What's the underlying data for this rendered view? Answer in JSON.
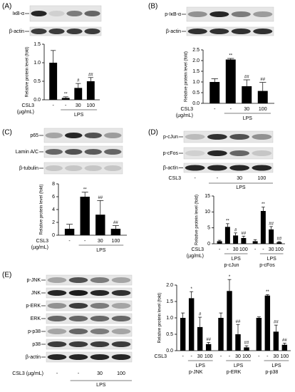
{
  "panels": [
    {
      "letter": "(A)",
      "blot": {
        "rows": [
          "IκB-α",
          "β-actin"
        ]
      }
    },
    {
      "letter": "(B)",
      "blot": {
        "rows": [
          "p-IκB-α",
          "β-actin"
        ]
      }
    },
    {
      "letter": "(C)",
      "blot": {
        "rows": [
          "p65",
          "Lamin A/C",
          "β-tubulin"
        ]
      }
    },
    {
      "letter": "(D)",
      "blot": {
        "rows": [
          "p-cJun",
          "p-cFos",
          "β-actin"
        ],
        "lane_row_label": "CSL3",
        "lanes": [
          "-",
          "-",
          "30",
          "100"
        ],
        "lane_group_label": "LPS"
      }
    },
    {
      "letter": "(E)",
      "blot": {
        "rows": [
          "p-JNK",
          "JNK",
          "p-ERK",
          "ERK",
          "p-p38",
          "p38",
          "β-actin"
        ],
        "lane_row_label": "CSL3 (µg/mL)",
        "lanes": [
          "-",
          "-",
          "30",
          "100"
        ],
        "lane_group_label": "LPS"
      }
    }
  ],
  "chart_data": [
    {
      "type": "bar",
      "y_label": "Relative protein level (fold)",
      "x_row_label": "CSL3",
      "x_row_unit": "(µg/mL)",
      "group_label": "LPS",
      "color": "#000000",
      "categories": [
        "-",
        "-",
        "30",
        "100"
      ],
      "values": [
        1.0,
        0.05,
        0.32,
        0.5
      ],
      "errors": [
        0.33,
        0.03,
        0.12,
        0.1
      ],
      "annotations": [
        null,
        "**",
        "#",
        "##"
      ],
      "ylim": [
        0,
        1.5
      ],
      "yticks": [
        {
          "value": 0,
          "label": "0.0"
        },
        {
          "value": 0.5,
          "label": "0.5"
        },
        {
          "value": 1,
          "label": "1.0"
        },
        {
          "value": 1.5,
          "label": "1.5"
        }
      ]
    },
    {
      "type": "bar",
      "y_label": "Relative protein level (fold)",
      "x_row_label": "CSL3",
      "x_row_unit": "(µg/mL)",
      "group_label": "LPS",
      "color": "#000000",
      "categories": [
        "-",
        "-",
        "30",
        "100"
      ],
      "values": [
        1.0,
        2.05,
        0.8,
        0.58
      ],
      "errors": [
        0.15,
        0.05,
        0.3,
        0.4
      ],
      "annotations": [
        null,
        "**",
        "##",
        "##"
      ],
      "ylim": [
        0,
        2.5
      ],
      "yticks": [
        {
          "value": 0,
          "label": "0.0"
        },
        {
          "value": 0.5,
          "label": "0.5"
        },
        {
          "value": 1,
          "label": "1.0"
        },
        {
          "value": 1.5,
          "label": "1.5"
        },
        {
          "value": 2,
          "label": "2.0"
        },
        {
          "value": 2.5,
          "label": "2.5"
        }
      ]
    },
    {
      "type": "bar",
      "y_label": "Relative protein level (fold)",
      "x_row_label": "CSL3",
      "x_row_unit": "(µg/mL)",
      "group_label": "LPS",
      "color": "#000000",
      "categories": [
        "-",
        "-",
        "30",
        "100"
      ],
      "values": [
        1.0,
        6.0,
        3.2,
        1.0
      ],
      "errors": [
        0.7,
        0.7,
        2.2,
        0.5
      ],
      "annotations": [
        null,
        "**",
        "##",
        "##"
      ],
      "ylim": [
        0,
        8
      ],
      "yticks": [
        0,
        2,
        4,
        6,
        8
      ]
    },
    {
      "type": "grouped_bar",
      "y_label": "Relative protein level (fold)",
      "x_row_label": "CSL3",
      "x_row_unit": "(µg/mL)",
      "group_label": "LPS",
      "color": "#000000",
      "categories": [
        "-",
        "-",
        "30",
        "100"
      ],
      "groups": [
        {
          "name": "p-cJun",
          "values": [
            0.8,
            5.3,
            2.6,
            1.8
          ],
          "errors": [
            0.3,
            1.0,
            0.8,
            0.6
          ],
          "annotations": [
            null,
            "**",
            "#",
            "##"
          ]
        },
        {
          "name": "p-cFos",
          "values": [
            0.8,
            10.3,
            4.5,
            0.5
          ],
          "errors": [
            0.5,
            1.2,
            0.9,
            0.2
          ],
          "annotations": [
            null,
            "**",
            "##",
            "##"
          ]
        }
      ],
      "ylim": [
        0,
        15
      ],
      "yticks": [
        0,
        5,
        10,
        15
      ]
    },
    {
      "type": "grouped_bar",
      "y_label": "Relative protein level (fold)",
      "x_row_label": "CSL3",
      "group_label": "LPS",
      "color": "#000000",
      "categories": [
        "-",
        "-",
        "30",
        "100"
      ],
      "groups": [
        {
          "name": "p-JNK",
          "values": [
            1.0,
            1.6,
            0.72,
            0.2
          ],
          "errors": [
            0.15,
            0.2,
            0.3,
            0.05
          ],
          "annotations": [
            null,
            "*",
            "#",
            "##"
          ]
        },
        {
          "name": "p-ERK",
          "values": [
            1.0,
            1.82,
            0.5,
            0.1
          ],
          "errors": [
            0.15,
            0.35,
            0.3,
            0.05
          ],
          "annotations": [
            null,
            "*",
            "##",
            "##"
          ]
        },
        {
          "name": "p-p38",
          "values": [
            1.0,
            1.68,
            0.58,
            0.18
          ],
          "errors": [
            0.03,
            0.03,
            0.2,
            0.05
          ],
          "annotations": [
            null,
            "**",
            "##",
            "##"
          ]
        }
      ],
      "ylim": [
        0,
        2
      ],
      "yticks": [
        {
          "value": 0,
          "label": "0.0"
        },
        {
          "value": 0.5,
          "label": "0.5"
        },
        {
          "value": 1,
          "label": "1.0"
        },
        {
          "value": 1.5,
          "label": "1.5"
        },
        {
          "value": 2,
          "label": "2.0"
        }
      ]
    }
  ]
}
